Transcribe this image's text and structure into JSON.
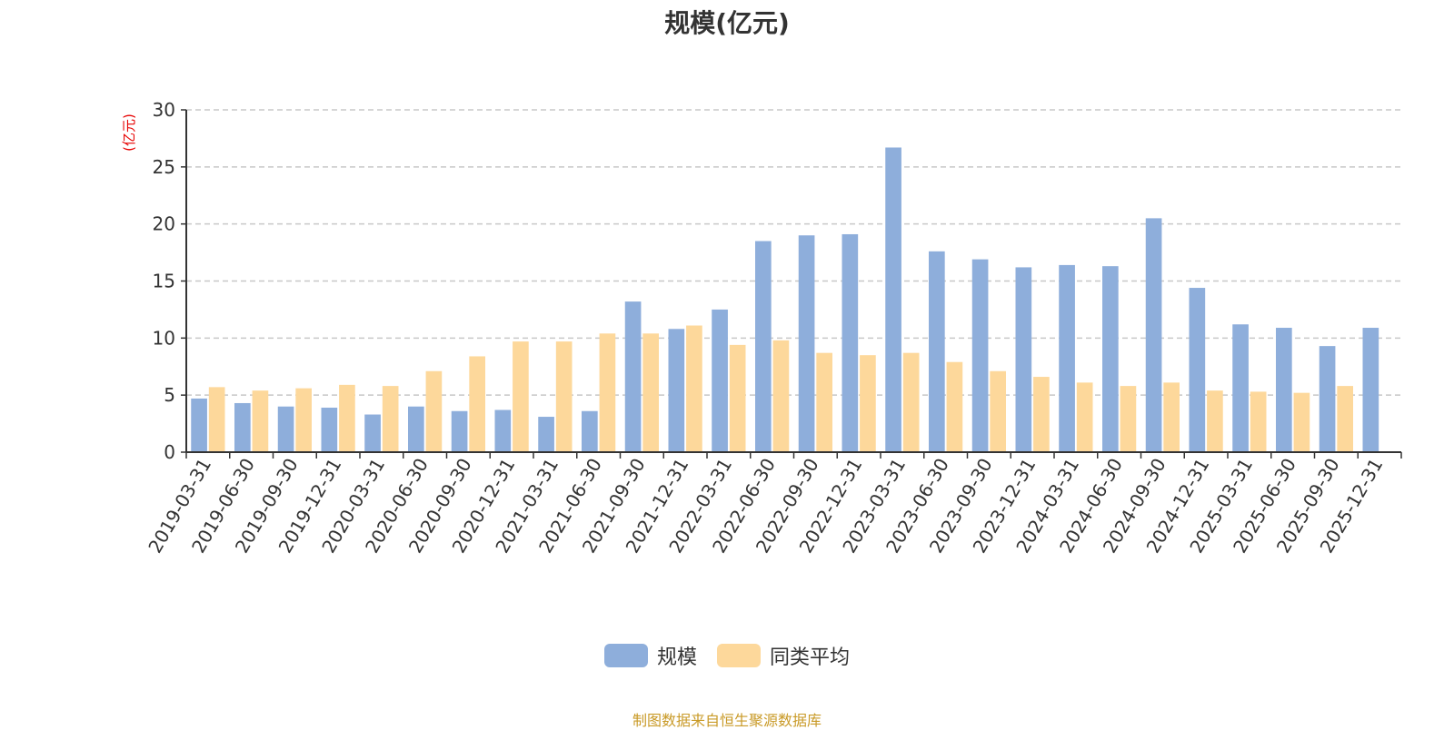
{
  "chart_data": {
    "type": "bar",
    "title": "规模(亿元)",
    "ylabel": "(亿元)",
    "xlabel": "",
    "ylim": [
      0,
      30
    ],
    "yticks": [
      0,
      5,
      10,
      15,
      20,
      25,
      30
    ],
    "grid": true,
    "legend_position": "bottom",
    "categories": [
      "2019-03-31",
      "2019-06-30",
      "2019-09-30",
      "2019-12-31",
      "2020-03-31",
      "2020-06-30",
      "2020-09-30",
      "2020-12-31",
      "2021-03-31",
      "2021-06-30",
      "2021-09-30",
      "2021-12-31",
      "2022-03-31",
      "2022-06-30",
      "2022-09-30",
      "2022-12-31",
      "2023-03-31",
      "2023-06-30",
      "2023-09-30",
      "2023-12-31",
      "2024-03-31",
      "2024-06-30",
      "2024-09-30",
      "2024-12-31",
      "2025-03-31",
      "2025-06-30",
      "2025-09-30",
      "2025-12-31"
    ],
    "series": [
      {
        "name": "规模",
        "color": "#8eaedb",
        "values": [
          4.7,
          4.3,
          4.0,
          3.9,
          3.3,
          4.0,
          3.6,
          3.7,
          3.1,
          3.6,
          13.2,
          10.8,
          12.5,
          18.5,
          19.0,
          19.1,
          26.7,
          17.6,
          16.9,
          16.2,
          16.4,
          16.3,
          20.5,
          14.4,
          11.2,
          10.9,
          9.3,
          10.9
        ]
      },
      {
        "name": "同类平均",
        "color": "#fdd89b",
        "values": [
          5.7,
          5.4,
          5.6,
          5.9,
          5.8,
          7.1,
          8.4,
          9.7,
          9.7,
          10.4,
          10.4,
          11.1,
          9.4,
          9.8,
          8.7,
          8.5,
          8.7,
          7.9,
          7.1,
          6.6,
          6.1,
          5.8,
          6.1,
          5.4,
          5.3,
          5.2,
          5.8,
          null
        ]
      }
    ]
  },
  "source_note": "制图数据来自恒生聚源数据库"
}
